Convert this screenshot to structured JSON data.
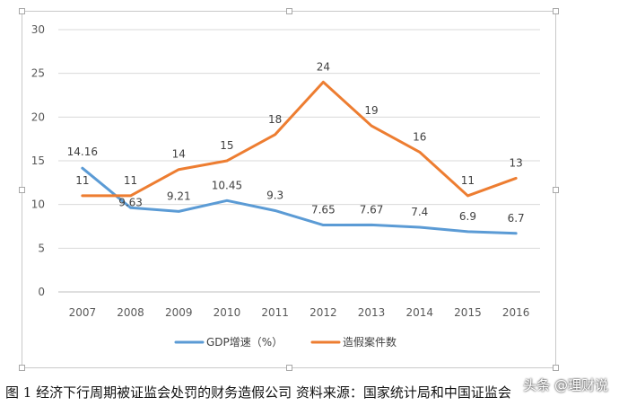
{
  "chart_data": {
    "type": "line",
    "categories": [
      "2007",
      "2008",
      "2009",
      "2010",
      "2011",
      "2012",
      "2013",
      "2014",
      "2015",
      "2016"
    ],
    "series": [
      {
        "name": "GDP增速（%）",
        "color": "#5b9bd5",
        "values": [
          14.16,
          9.63,
          9.21,
          10.45,
          9.3,
          7.65,
          7.67,
          7.4,
          6.9,
          6.7
        ],
        "labels": [
          "14.16",
          "9.63",
          "9.21",
          "10.45",
          "9.3",
          "7.65",
          "7.67",
          "7.4",
          "6.9",
          "6.7"
        ]
      },
      {
        "name": "造假案件数",
        "color": "#ed7d31",
        "values": [
          11,
          11,
          14,
          15,
          18,
          24,
          19,
          16,
          11,
          13
        ],
        "labels": [
          "11",
          "11",
          "14",
          "15",
          "18",
          "24",
          "19",
          "16",
          "11",
          "13"
        ]
      }
    ],
    "ylim": [
      0,
      30
    ],
    "yticks": [
      "0",
      "5",
      "10",
      "15",
      "20",
      "25",
      "30"
    ],
    "grid": true,
    "legend": "bottom"
  },
  "caption": "图 1  经济下行周期被证监会处罚的财务造假公司  资料来源：国家统计局和中国证监会",
  "watermark": "头条 @理财说"
}
